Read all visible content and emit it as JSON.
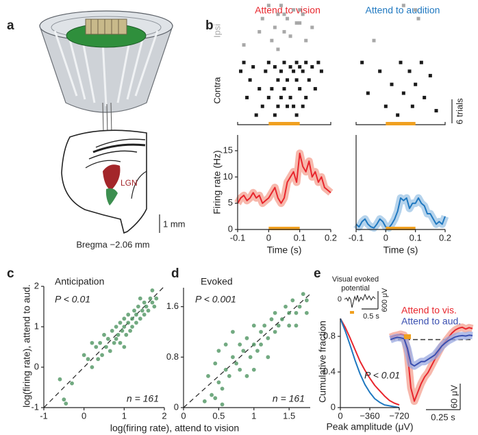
{
  "figure": {
    "panel_labels": [
      "a",
      "b",
      "c",
      "d",
      "e"
    ]
  },
  "diagram": {
    "region_label": "LGN",
    "scale_label": "1 mm",
    "caption": "Bregma −2.06 mm"
  },
  "evoked_inset": {
    "title_lines": [
      "Visual evoked",
      "potential"
    ],
    "zero_label": "0",
    "scale_labels": [
      "600 μV",
      "0.5 s"
    ]
  },
  "chart_data": [
    {
      "type": "raster",
      "title": "Attend to vision",
      "title_color": "#e8262d",
      "xlim": [
        -0.1,
        0.2
      ],
      "stimulus": [
        0,
        0.1
      ],
      "stimulus_color": "#f0a020",
      "series": [
        {
          "name": "Ipsi",
          "color": "#a8a8a8",
          "x": [
            0.0,
            0.04,
            0.1,
            0.08,
            0.03,
            0.05,
            0.11,
            0.06,
            -0.02,
            0.09,
            0.1,
            0.14,
            0.02,
            -0.03,
            0.05,
            0.07,
            0.01,
            0.12,
            -0.08,
            0.03
          ],
          "y": [
            0,
            0,
            1,
            1,
            2,
            2,
            2,
            3,
            3,
            4,
            4,
            5,
            5,
            6,
            6,
            7,
            8,
            8,
            9,
            10
          ]
        },
        {
          "name": "Contra",
          "color": "#1a1a1a",
          "x": [
            -0.08,
            0.0,
            0.05,
            0.09,
            0.12,
            0.16,
            -0.05,
            0.02,
            0.07,
            0.1,
            0.14,
            -0.09,
            -0.01,
            0.04,
            0.08,
            0.11,
            0.17,
            -0.06,
            0.03,
            0.06,
            0.09,
            0.13,
            -0.03,
            0.01,
            0.05,
            0.1,
            0.15,
            -0.07,
            0.0,
            0.04,
            0.07,
            0.12,
            -0.02,
            0.03,
            0.06,
            0.08,
            0.11,
            -0.04,
            0.02,
            0.09
          ],
          "y": [
            13,
            13,
            13,
            13,
            13,
            13,
            14,
            14,
            14,
            14,
            14,
            15,
            15,
            15,
            15,
            15,
            15,
            17,
            17,
            17,
            17,
            17,
            19,
            19,
            19,
            19,
            19,
            21,
            21,
            21,
            21,
            21,
            23,
            23,
            23,
            23,
            23,
            25,
            25,
            25
          ]
        }
      ]
    },
    {
      "type": "raster",
      "title": "Attend to audition",
      "title_color": "#1f78c0",
      "xlim": [
        -0.1,
        0.2
      ],
      "stimulus": [
        0,
        0.1
      ],
      "stimulus_color": "#f0a020",
      "scale_label": "6 trials",
      "series": [
        {
          "color": "#a8a8a8",
          "x": [
            0.06,
            0.1,
            0.11,
            -0.04
          ],
          "y": [
            0,
            1,
            3,
            8
          ]
        },
        {
          "color": "#1a1a1a",
          "x": [
            -0.08,
            0.05,
            0.12,
            -0.02,
            0.08,
            0.15,
            0.02,
            0.1,
            -0.06,
            0.06,
            0.13,
            0.0,
            0.09,
            0.17,
            0.04
          ],
          "y": [
            13,
            13,
            13,
            15,
            15,
            16,
            18,
            18,
            20,
            20,
            21,
            23,
            23,
            24,
            25
          ]
        }
      ]
    },
    {
      "type": "line",
      "band": true,
      "color": "#e8262d",
      "band_color": "#f4a090",
      "stimulus": [
        0,
        0.1
      ],
      "stimulus_color": "#f0a020",
      "x": [
        -0.1,
        -0.09,
        -0.08,
        -0.07,
        -0.06,
        -0.05,
        -0.04,
        -0.03,
        -0.02,
        -0.01,
        0,
        0.01,
        0.02,
        0.03,
        0.04,
        0.05,
        0.06,
        0.07,
        0.08,
        0.09,
        0.1,
        0.11,
        0.12,
        0.13,
        0.14,
        0.15,
        0.16,
        0.17,
        0.18,
        0.19,
        0.2
      ],
      "values": [
        5,
        6,
        6.5,
        5.5,
        6,
        7,
        6,
        6.5,
        5,
        5.5,
        6,
        7,
        8,
        6,
        5,
        6,
        9,
        10,
        11,
        9,
        14.5,
        12,
        11,
        13,
        10,
        11,
        9,
        10,
        8,
        7.5,
        7
      ],
      "xlim": [
        -0.1,
        0.2
      ],
      "ylim": [
        0,
        18
      ],
      "xticks": [
        -0.1,
        0,
        0.1,
        0.2
      ],
      "yticks": [
        0,
        5,
        10,
        15
      ],
      "xlabel": "Time (s)",
      "ylabel": "Firing rate (Hz)"
    },
    {
      "type": "line",
      "band": true,
      "color": "#1f78c0",
      "band_color": "#9cc4e6",
      "stimulus": [
        0,
        0.1
      ],
      "stimulus_color": "#f0a020",
      "x": [
        -0.1,
        -0.09,
        -0.08,
        -0.07,
        -0.06,
        -0.05,
        -0.04,
        -0.03,
        -0.02,
        -0.01,
        0,
        0.01,
        0.02,
        0.03,
        0.04,
        0.05,
        0.06,
        0.07,
        0.08,
        0.09,
        0.1,
        0.11,
        0.12,
        0.13,
        0.14,
        0.15,
        0.16,
        0.17,
        0.18,
        0.19,
        0.2
      ],
      "values": [
        1,
        0.5,
        1.5,
        2,
        1,
        0.5,
        0.3,
        1,
        2,
        1.5,
        0.5,
        0.3,
        1,
        2,
        3.5,
        6,
        5.5,
        6,
        4,
        5,
        5,
        6,
        5,
        4.5,
        3,
        3,
        2,
        1,
        1.5,
        1,
        2.5
      ],
      "xlim": [
        -0.1,
        0.2
      ],
      "ylim": [
        0,
        18
      ],
      "xticks": [
        -0.1,
        0,
        0.1,
        0.2
      ],
      "xlabel": "Time (s)"
    },
    {
      "type": "scatter",
      "title": "Anticipation",
      "annotations": [
        "P < 0.01",
        "n = 161"
      ],
      "color": "#4f9562",
      "diagonal": true,
      "x": [
        -0.6,
        -0.5,
        -0.45,
        -0.3,
        0.1,
        0.2,
        0.3,
        0.35,
        0.4,
        0.45,
        0.5,
        0.55,
        0.6,
        0.65,
        0.7,
        0.75,
        0.8,
        0.8,
        0.85,
        0.9,
        0.9,
        0.95,
        1.0,
        1.0,
        1.05,
        1.1,
        1.1,
        1.15,
        1.2,
        1.2,
        1.25,
        1.3,
        1.3,
        1.35,
        1.4,
        1.45,
        1.5,
        1.5,
        1.55,
        1.6,
        1.65,
        1.7,
        1.75,
        1.8,
        0.0,
        0.2,
        1.0,
        1.4,
        1.7
      ],
      "values": [
        -0.3,
        -0.8,
        -0.9,
        -0.4,
        0.2,
        0.0,
        0.5,
        0.2,
        0.6,
        0.3,
        0.8,
        0.5,
        0.7,
        0.4,
        0.9,
        0.6,
        1.0,
        0.7,
        0.8,
        1.1,
        0.6,
        0.9,
        1.0,
        1.2,
        0.8,
        1.1,
        1.3,
        0.9,
        1.2,
        1.0,
        1.4,
        1.1,
        1.3,
        1.5,
        1.2,
        1.4,
        1.3,
        1.6,
        1.5,
        1.4,
        1.7,
        1.6,
        1.5,
        1.7,
        0.3,
        0.6,
        0.5,
        1.7,
        1.9
      ],
      "xlim": [
        -1,
        2
      ],
      "ylim": [
        -1,
        2
      ],
      "xticks": [
        -1,
        0,
        1,
        2
      ],
      "yticks": [
        -1,
        0,
        1,
        2
      ],
      "xlabel": "log(firing rate), attend to vision",
      "ylabel": "log(firing rate), attend to aud."
    },
    {
      "type": "scatter",
      "title": "Evoked",
      "annotations": [
        "P < 0.001",
        "n = 161"
      ],
      "color": "#4f9562",
      "diagonal": true,
      "x": [
        0.35,
        0.4,
        0.45,
        0.5,
        0.5,
        0.55,
        0.6,
        0.6,
        0.65,
        0.7,
        0.75,
        0.8,
        0.8,
        0.85,
        0.9,
        0.95,
        1.0,
        1.0,
        1.05,
        1.1,
        1.1,
        1.15,
        1.2,
        1.25,
        1.3,
        1.3,
        1.35,
        1.4,
        1.45,
        1.5,
        1.5,
        1.55,
        1.6,
        1.65,
        1.7,
        1.75,
        0.3,
        0.45,
        0.7,
        0.9,
        1.2,
        1.6,
        1.75,
        0.55,
        1.0
      ],
      "values": [
        0.5,
        0.2,
        0.7,
        0.4,
        0.9,
        0.3,
        0.6,
        1.0,
        0.5,
        0.8,
        0.7,
        1.0,
        0.6,
        0.9,
        1.1,
        0.8,
        1.0,
        1.3,
        0.9,
        1.2,
        1.0,
        1.3,
        1.1,
        1.4,
        1.2,
        1.5,
        1.3,
        1.4,
        1.6,
        1.5,
        1.3,
        1.7,
        1.5,
        1.6,
        1.8,
        1.7,
        0.1,
        0.15,
        1.2,
        0.5,
        0.8,
        1.3,
        1.5,
        0.05,
        0.6
      ],
      "xlim": [
        0,
        1.8
      ],
      "ylim": [
        0,
        1.9
      ],
      "xticks": [
        0,
        0.5,
        1,
        1.5
      ],
      "yticks": [
        0,
        0.8,
        1.6
      ]
    },
    {
      "type": "line",
      "annotations": [
        "P < 0.01"
      ],
      "x": [
        0,
        -60,
        -120,
        -180,
        -240,
        -300,
        -360,
        -420,
        -480,
        -540,
        -600,
        -660,
        -720
      ],
      "series": [
        {
          "color": "#e8262d",
          "values": [
            1,
            0.9,
            0.78,
            0.65,
            0.52,
            0.42,
            0.33,
            0.25,
            0.19,
            0.13,
            0.08,
            0.05,
            0.03
          ]
        },
        {
          "color": "#1f78c0",
          "values": [
            1,
            0.86,
            0.7,
            0.53,
            0.38,
            0.26,
            0.17,
            0.1,
            0.06,
            0.03,
            0.02,
            0.01,
            0.0
          ]
        }
      ],
      "xlim": [
        0,
        -720
      ],
      "ylim": [
        0,
        1
      ],
      "xticks": [
        0,
        {
          "value": -360,
          "label": "−360"
        },
        {
          "value": -720,
          "label": "−720"
        }
      ],
      "yticks": [
        0,
        0.4,
        0.8
      ],
      "xlabel": "Peak amplitude (μV)",
      "ylabel": "Cumulative fraction"
    },
    {
      "type": "line",
      "band": true,
      "zero_line": true,
      "stimulus": [
        0,
        0.05
      ],
      "stimulus_color": "#f0a020",
      "scale_labels": [
        "60 μV",
        "0.25 s"
      ],
      "x": [
        -0.1,
        -0.075,
        -0.05,
        -0.025,
        0,
        0.025,
        0.05,
        0.075,
        0.1,
        0.125,
        0.15,
        0.175,
        0.2,
        0.225,
        0.25,
        0.275,
        0.3,
        0.325,
        0.35,
        0.375,
        0.4,
        0.425,
        0.45,
        0.475,
        0.5
      ],
      "series": [
        {
          "name": "Attend to vis.",
          "color": "#e8262d",
          "band_color": "#f4a090",
          "values": [
            5,
            8,
            10,
            12,
            10,
            -30,
            -110,
            -140,
            -120,
            -100,
            -85,
            -75,
            -60,
            -45,
            -30,
            -15,
            -5,
            5,
            15,
            22,
            26,
            28,
            24,
            27,
            25
          ]
        },
        {
          "name": "Attend to aud.",
          "color": "#3a4fb0",
          "band_color": "#9aa8e0",
          "values": [
            0,
            3,
            5,
            4,
            2,
            -20,
            -55,
            -60,
            -55,
            -50,
            -50,
            -45,
            -40,
            -35,
            -25,
            -15,
            -8,
            -2,
            2,
            6,
            8,
            9,
            8,
            10,
            9
          ]
        }
      ],
      "xlim": [
        -0.1,
        0.5
      ],
      "ylim": [
        -150,
        40
      ]
    }
  ]
}
